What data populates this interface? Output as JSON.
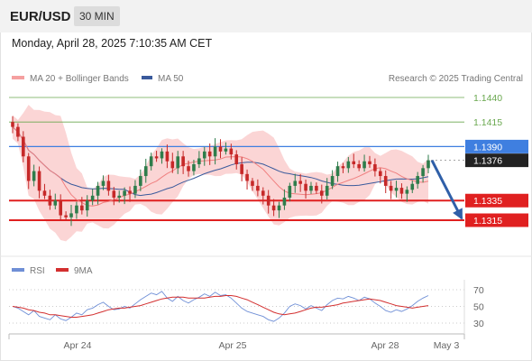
{
  "header": {
    "symbol": "EUR/USD",
    "timeframe": "30 MIN"
  },
  "datetime": "Monday, April 28, 2025 7:10:35 AM CET",
  "legend": {
    "ma20_label": "MA 20 + Bollinger Bands",
    "ma50_label": "MA 50",
    "copyright": "Research © 2025 Trading Central"
  },
  "rsi_legend": {
    "rsi_label": "RSI",
    "ma_label": "9MA"
  },
  "colors": {
    "green_level": "#6aa84f",
    "resistance": "#3f7fe0",
    "support": "#e02020",
    "current": "#222222",
    "candle_up": "#2e7d4b",
    "candle_down": "#c62828",
    "bollinger_fill": "#f9c7c7",
    "ma20": "#f08080",
    "ma50": "#3a5a9c",
    "rsi": "#6f8fd6",
    "rsi_ma": "#d32f2f",
    "arrow": "#2f5fa8"
  },
  "chart_data": {
    "type": "candlestick",
    "x_tick_labels": [
      "Apr 24",
      "Apr 25",
      "Apr 28",
      "May 3"
    ],
    "price_levels": [
      {
        "value": 1.144,
        "label": "1.1440",
        "kind": "target"
      },
      {
        "value": 1.1415,
        "label": "1.1415",
        "kind": "target"
      },
      {
        "value": 1.139,
        "label": "1.1390",
        "kind": "pivot"
      },
      {
        "value": 1.1376,
        "label": "1.1376",
        "kind": "current"
      },
      {
        "value": 1.1335,
        "label": "1.1335",
        "kind": "support"
      },
      {
        "value": 1.1315,
        "label": "1.1315",
        "kind": "support"
      }
    ],
    "ylim": [
      1.129,
      1.1455
    ],
    "arrow": {
      "from": 1.1376,
      "to": 1.1315,
      "direction": "down"
    },
    "close_series": [
      1.141,
      1.14,
      1.138,
      1.1355,
      1.1365,
      1.1345,
      1.134,
      1.133,
      1.1335,
      1.132,
      1.1318,
      1.1322,
      1.133,
      1.1325,
      1.1335,
      1.134,
      1.135,
      1.1355,
      1.1345,
      1.1338,
      1.134,
      1.1345,
      1.1342,
      1.135,
      1.136,
      1.137,
      1.138,
      1.1378,
      1.1385,
      1.1375,
      1.1368,
      1.138,
      1.137,
      1.1365,
      1.1372,
      1.1378,
      1.1385,
      1.138,
      1.139,
      1.1385,
      1.1388,
      1.1382,
      1.1372,
      1.1362,
      1.1355,
      1.135,
      1.1345,
      1.134,
      1.133,
      1.1325,
      1.133,
      1.1338,
      1.135,
      1.1355,
      1.1352,
      1.1345,
      1.135,
      1.1345,
      1.134,
      1.135,
      1.136,
      1.137,
      1.1368,
      1.1375,
      1.1372,
      1.1368,
      1.1375,
      1.1372,
      1.1365,
      1.136,
      1.135,
      1.1345,
      1.1348,
      1.1342,
      1.1346,
      1.1352,
      1.136,
      1.1368,
      1.1376
    ],
    "rsi": {
      "levels": [
        70,
        50,
        30
      ],
      "ylim": [
        20,
        80
      ],
      "rsi_values": [
        50,
        48,
        44,
        40,
        45,
        38,
        36,
        34,
        40,
        35,
        33,
        37,
        42,
        40,
        46,
        48,
        52,
        55,
        50,
        46,
        47,
        50,
        48,
        53,
        58,
        62,
        66,
        64,
        68,
        60,
        56,
        62,
        57,
        54,
        58,
        61,
        65,
        62,
        67,
        63,
        64,
        60,
        54,
        48,
        44,
        42,
        40,
        38,
        34,
        32,
        36,
        42,
        50,
        53,
        51,
        47,
        51,
        48,
        45,
        52,
        57,
        60,
        59,
        62,
        60,
        57,
        61,
        59,
        54,
        50,
        45,
        43,
        46,
        44,
        47,
        51,
        56,
        60,
        63
      ],
      "ma_values": [
        50,
        49,
        48,
        46,
        45,
        43,
        42,
        40,
        40,
        39,
        38,
        37,
        37,
        38,
        39,
        40,
        42,
        44,
        46,
        47,
        48,
        48,
        49,
        50,
        51,
        53,
        55,
        57,
        59,
        60,
        61,
        61,
        61,
        60,
        60,
        60,
        60,
        61,
        62,
        62,
        63,
        63,
        62,
        60,
        58,
        55,
        52,
        49,
        46,
        43,
        41,
        40,
        41,
        42,
        44,
        46,
        48,
        49,
        49,
        50,
        51,
        52,
        54,
        55,
        56,
        57,
        58,
        59,
        58,
        57,
        55,
        53,
        51,
        50,
        49,
        48,
        49,
        50,
        51
      ]
    }
  }
}
